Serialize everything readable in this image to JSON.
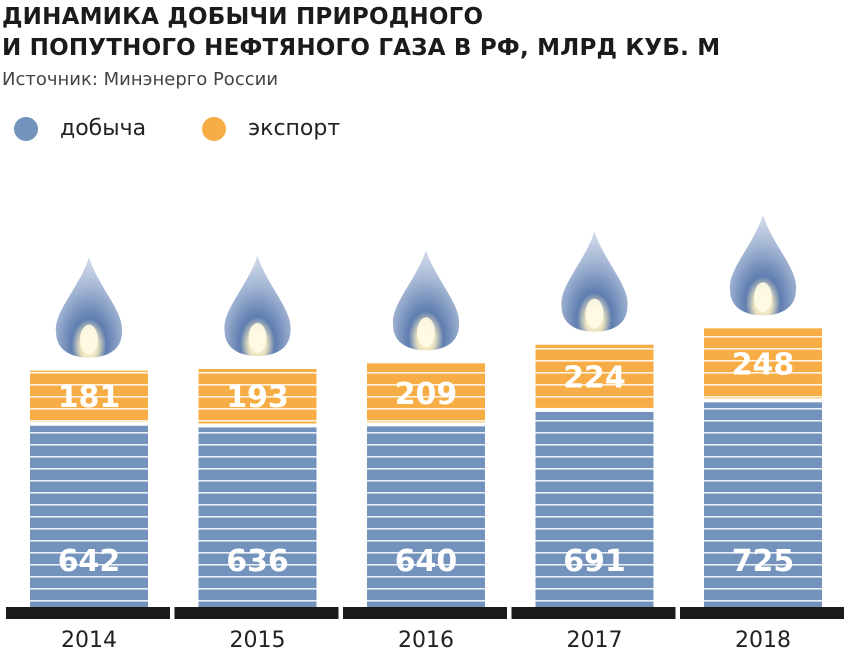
{
  "header": {
    "title_line1": "ДИНАМИКА ДОБЫЧИ ПРИРОДНОГО",
    "title_line2": "И ПОПУТНОГО НЕФТЯНОГО ГАЗА В РФ, МЛРД КУБ. М",
    "source": "Источник: Минэнерго России"
  },
  "colors": {
    "production": "#7393bc",
    "export": "#f7ad45",
    "baseline": "#1a1a1a",
    "flame_outer": "#c9d4e6",
    "flame_inner": "#5f7db0",
    "flame_core": "#fff3c9"
  },
  "chart_data": {
    "type": "bar",
    "stacked": true,
    "categories": [
      "2014",
      "2015",
      "2016",
      "2017",
      "2018"
    ],
    "series": [
      {
        "name": "добыча",
        "values": [
          642,
          636,
          640,
          691,
          725
        ]
      },
      {
        "name": "экспорт",
        "values": [
          181,
          193,
          209,
          224,
          248
        ]
      }
    ],
    "title": "ДИНАМИКА ДОБЫЧИ ПРИРОДНОГО И ПОПУТНОГО НЕФТЯНОГО ГАЗА В РФ, МЛРД КУБ. М",
    "legend_position": "top-left",
    "grid": false
  }
}
